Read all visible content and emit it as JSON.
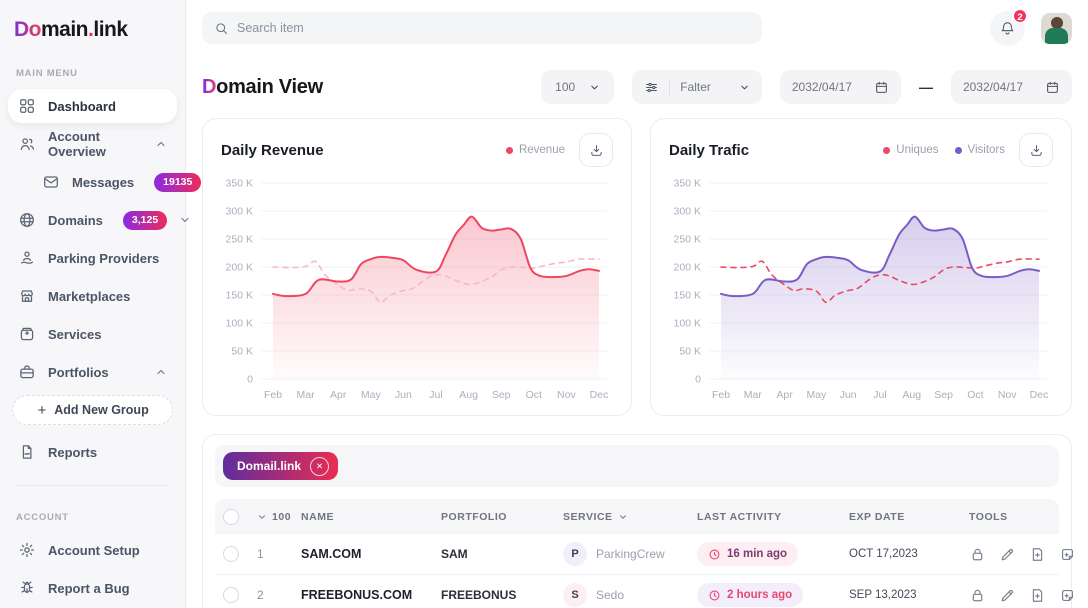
{
  "app": {
    "logo": {
      "gradient_part": "Do",
      "part2": "main",
      "dot": ".",
      "part3": "link"
    }
  },
  "topbar": {
    "search_placeholder": "Search item",
    "notification_count": "2"
  },
  "page": {
    "title_accent": "D",
    "title_rest": "omain View",
    "page_size_value": "100",
    "filter_label": "Falter",
    "date_from": "2032/04/17",
    "date_dash": "—",
    "date_to": "2032/04/17"
  },
  "sidebar": {
    "section_main": "MAIN MENU",
    "section_account": "ACCOUNT",
    "items": [
      {
        "id": "dashboard",
        "label": "Dashboard",
        "icon": "grid",
        "active": true
      },
      {
        "id": "account-overview",
        "label": "Account Overview",
        "icon": "users",
        "chevron": "up"
      },
      {
        "id": "messages",
        "label": "Messages",
        "icon": "mail",
        "badge": "19135",
        "sub": true
      },
      {
        "id": "domains",
        "label": "Domains",
        "icon": "globe",
        "badge": "3,125",
        "chevron": "down"
      },
      {
        "id": "parking-providers",
        "label": "Parking Providers",
        "icon": "parking"
      },
      {
        "id": "marketplaces",
        "label": "Marketplaces",
        "icon": "store"
      },
      {
        "id": "services",
        "label": "Services",
        "icon": "box"
      },
      {
        "id": "portfolios",
        "label": "Portfolios",
        "icon": "briefcase",
        "chevron": "up"
      },
      {
        "id": "add-new-group",
        "label": "Add New Group",
        "type": "add"
      },
      {
        "id": "reports",
        "label": "Reports",
        "icon": "report"
      }
    ],
    "account_items": [
      {
        "id": "account-setup",
        "label": "Account Setup",
        "icon": "gear"
      },
      {
        "id": "report-a-bug",
        "label": "Report a Bug",
        "icon": "bug"
      }
    ]
  },
  "chart_data": [
    {
      "type": "line",
      "title": "Daily Revenue",
      "categories": [
        "Feb",
        "Mar",
        "Apr",
        "May",
        "Jun",
        "Jul",
        "Aug",
        "Sep",
        "Oct",
        "Nov",
        "Dec"
      ],
      "ylim": [
        0,
        350
      ],
      "ytick_values": [
        350,
        300,
        250,
        200,
        150,
        100,
        50,
        0
      ],
      "ytick_labels": [
        "350 K",
        "300 K",
        "250 K",
        "200 K",
        "150 K",
        "100 K",
        "50 K",
        "0"
      ],
      "grid": "horizontal",
      "legend_position": "top-right",
      "legend_items": [
        {
          "label": "Revenue",
          "color": "#ee4760"
        }
      ],
      "series": [
        {
          "name": "",
          "style": "dashed",
          "color": "#f6b9c6",
          "fill": false,
          "points": [
            [
              0,
              200
            ],
            [
              0.5,
              199
            ],
            [
              1,
              201
            ],
            [
              1.3,
              210
            ],
            [
              1.6,
              186
            ],
            [
              2,
              168
            ],
            [
              2.3,
              158
            ],
            [
              2.6,
              161
            ],
            [
              3,
              157
            ],
            [
              3.3,
              137
            ],
            [
              3.6,
              150
            ],
            [
              4,
              158
            ],
            [
              4.3,
              162
            ],
            [
              4.7,
              179
            ],
            [
              5,
              186
            ],
            [
              5.3,
              184
            ],
            [
              5.6,
              176
            ],
            [
              6,
              169
            ],
            [
              6.3,
              172
            ],
            [
              6.7,
              182
            ],
            [
              7,
              195
            ],
            [
              7.3,
              200
            ],
            [
              7.7,
              199
            ],
            [
              8,
              198
            ],
            [
              8.3,
              202
            ],
            [
              8.7,
              207
            ],
            [
              9,
              209
            ],
            [
              9.4,
              214
            ],
            [
              10,
              214
            ]
          ]
        },
        {
          "name": "Revenue",
          "style": "solid",
          "color": "#ee4760",
          "fill": true,
          "fill_from": "rgba(238,71,96,0.30)",
          "fill_to": "rgba(238,71,96,0.02)",
          "points": [
            [
              0,
              152
            ],
            [
              0.4,
              148
            ],
            [
              1,
              152
            ],
            [
              1.4,
              177
            ],
            [
              2,
              174
            ],
            [
              2.4,
              178
            ],
            [
              2.7,
              205
            ],
            [
              3,
              214
            ],
            [
              3.3,
              218
            ],
            [
              3.7,
              216
            ],
            [
              4,
              212
            ],
            [
              4.4,
              195
            ],
            [
              5,
              192
            ],
            [
              5.3,
              222
            ],
            [
              5.6,
              258
            ],
            [
              5.85,
              275
            ],
            [
              6.1,
              290
            ],
            [
              6.4,
              270
            ],
            [
              6.7,
              265
            ],
            [
              7,
              267
            ],
            [
              7.3,
              268
            ],
            [
              7.6,
              250
            ],
            [
              7.9,
              198
            ],
            [
              8.2,
              184
            ],
            [
              8.6,
              182
            ],
            [
              9,
              184
            ],
            [
              9.4,
              193
            ],
            [
              9.7,
              196
            ],
            [
              10,
              193
            ]
          ]
        }
      ]
    },
    {
      "type": "line",
      "title": "Daily Trafic",
      "categories": [
        "Feb",
        "Mar",
        "Apr",
        "May",
        "Jun",
        "Jul",
        "Aug",
        "Sep",
        "Oct",
        "Nov",
        "Dec"
      ],
      "ylim": [
        0,
        350
      ],
      "ytick_values": [
        350,
        300,
        250,
        200,
        150,
        100,
        50,
        0
      ],
      "ytick_labels": [
        "350 K",
        "300 K",
        "250 K",
        "200 K",
        "150 K",
        "100 K",
        "50 K",
        "0"
      ],
      "grid": "horizontal",
      "legend_position": "top-right",
      "legend_items": [
        {
          "label": "Uniques",
          "color": "#eb4a62"
        },
        {
          "label": "Visitors",
          "color": "#7a5cc5"
        }
      ],
      "series": [
        {
          "name": "Uniques",
          "style": "dashed",
          "color": "#eb4a62",
          "fill": false,
          "points": [
            [
              0,
              200
            ],
            [
              0.5,
              199
            ],
            [
              1,
              201
            ],
            [
              1.3,
              210
            ],
            [
              1.6,
              186
            ],
            [
              2,
              168
            ],
            [
              2.3,
              158
            ],
            [
              2.6,
              161
            ],
            [
              3,
              157
            ],
            [
              3.3,
              137
            ],
            [
              3.6,
              150
            ],
            [
              4,
              158
            ],
            [
              4.3,
              162
            ],
            [
              4.7,
              179
            ],
            [
              5,
              186
            ],
            [
              5.3,
              184
            ],
            [
              5.6,
              176
            ],
            [
              6,
              169
            ],
            [
              6.3,
              172
            ],
            [
              6.7,
              182
            ],
            [
              7,
              195
            ],
            [
              7.3,
              200
            ],
            [
              7.7,
              199
            ],
            [
              8,
              198
            ],
            [
              8.3,
              202
            ],
            [
              8.7,
              207
            ],
            [
              9,
              209
            ],
            [
              9.4,
              214
            ],
            [
              10,
              214
            ]
          ]
        },
        {
          "name": "Visitors",
          "style": "solid",
          "color": "#7a5cc5",
          "fill": true,
          "fill_from": "rgba(122,92,197,0.30)",
          "fill_to": "rgba(122,92,197,0.02)",
          "points": [
            [
              0,
              152
            ],
            [
              0.4,
              148
            ],
            [
              1,
              152
            ],
            [
              1.4,
              177
            ],
            [
              2,
              174
            ],
            [
              2.4,
              178
            ],
            [
              2.7,
              205
            ],
            [
              3,
              214
            ],
            [
              3.3,
              218
            ],
            [
              3.7,
              216
            ],
            [
              4,
              212
            ],
            [
              4.4,
              195
            ],
            [
              5,
              192
            ],
            [
              5.3,
              222
            ],
            [
              5.6,
              258
            ],
            [
              5.85,
              275
            ],
            [
              6.1,
              290
            ],
            [
              6.4,
              270
            ],
            [
              6.7,
              265
            ],
            [
              7,
              267
            ],
            [
              7.3,
              268
            ],
            [
              7.6,
              250
            ],
            [
              7.9,
              198
            ],
            [
              8.2,
              184
            ],
            [
              8.6,
              182
            ],
            [
              9,
              184
            ],
            [
              9.4,
              193
            ],
            [
              9.7,
              196
            ],
            [
              10,
              193
            ]
          ]
        }
      ]
    }
  ],
  "table": {
    "filter_chip": "Domail.link",
    "header": {
      "count": "100",
      "name": "NAME",
      "portfolio": "PORTFOLIO",
      "service": "SERVICE",
      "last_activity": "LAST ACTIVITY",
      "exp_date": "EXP DATE",
      "tools": "TOOLS"
    },
    "rows": [
      {
        "index": "1",
        "name": "SAM.COM",
        "portfolio": "SAM",
        "service_initial": "P",
        "service_initial_bg": "#f3eefb",
        "service": "ParkingCrew",
        "last_activity": "16 min ago",
        "activity_bg": "#fdeef3",
        "activity_color": "#7c3a6e",
        "activity_icon_color": "#e8486d",
        "exp_date": "OCT 17,2023"
      },
      {
        "index": "2",
        "name": "FREEBONUS.COM",
        "portfolio": "FREEBONUS",
        "service_initial": "S",
        "service_initial_bg": "#fdeef0",
        "service": "Sedo",
        "last_activity": "2 hours ago",
        "activity_bg": "#f3eefb",
        "activity_color": "#e8486d",
        "activity_icon_color": "#e8486d",
        "exp_date": "SEP 13,2023"
      }
    ]
  },
  "colors": {
    "badge_gradient_from": "#8a2be2",
    "badge_gradient_to": "#ee2b5b",
    "chip_gradient_from": "#5f2d9e",
    "chip_gradient_to": "#ea2c52",
    "notification_red": "#f0365a",
    "revenue_line": "#ee4760",
    "visitors_line": "#7a5cc5"
  }
}
